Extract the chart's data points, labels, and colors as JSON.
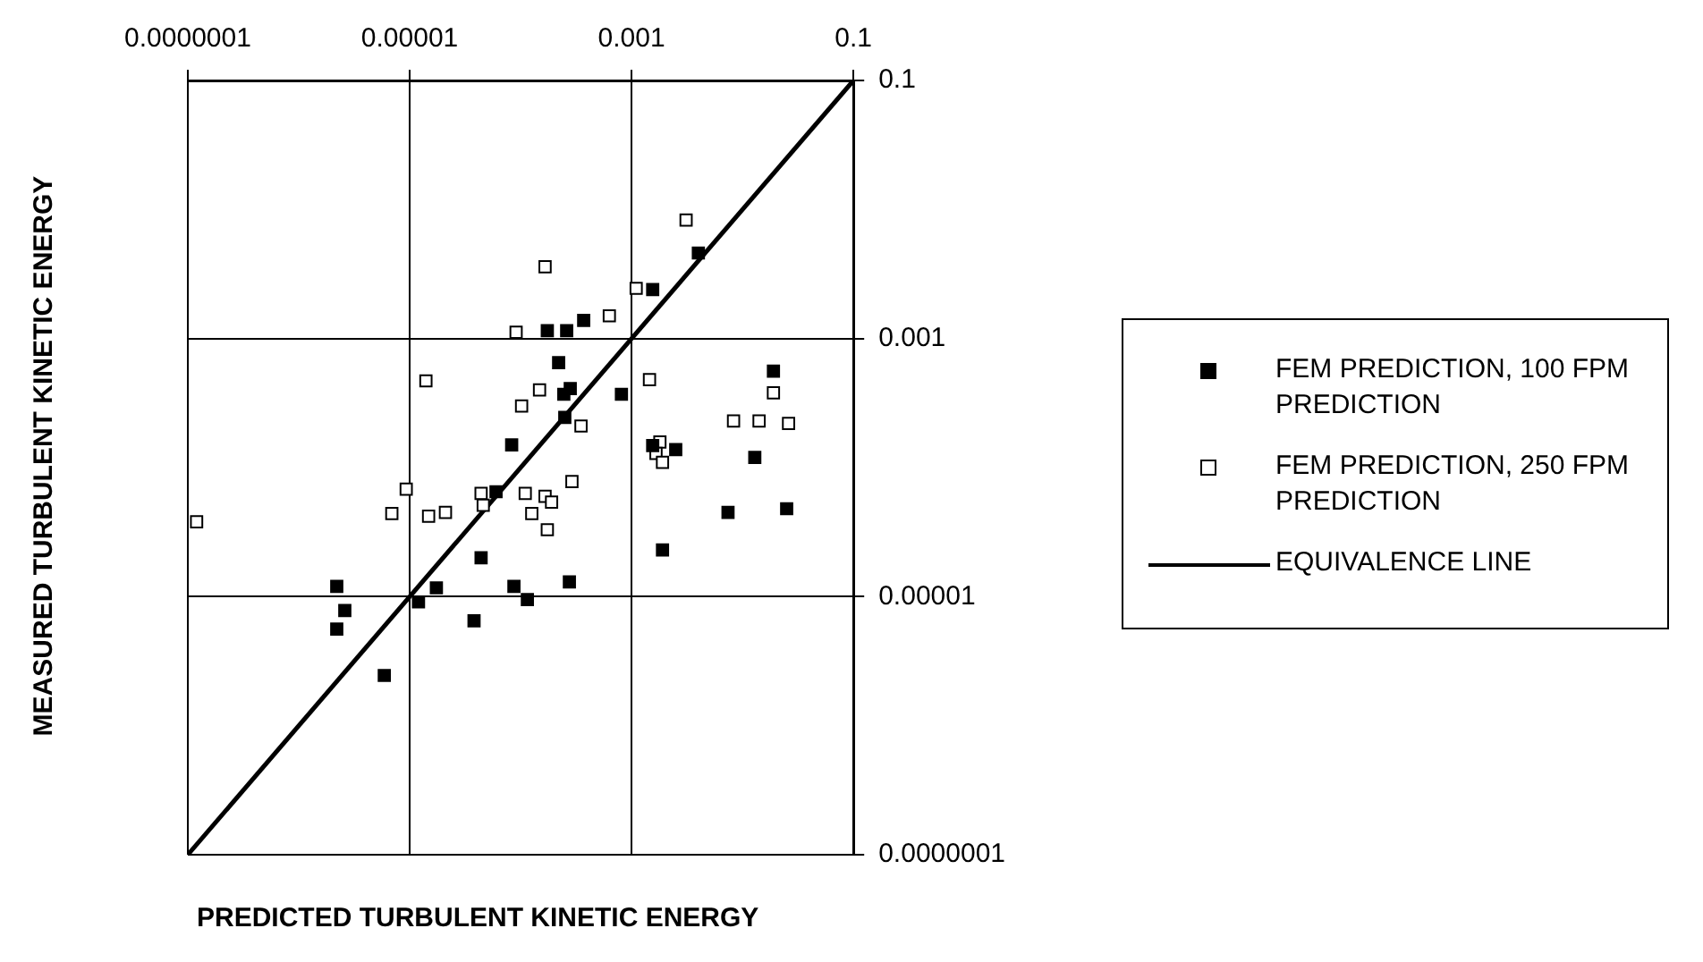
{
  "chart_data": {
    "type": "scatter",
    "xlabel": "PREDICTED TURBULENT KINETIC ENERGY",
    "ylabel": "MEASURED TURBULENT KINETIC ENERGY",
    "log": "xy",
    "grid": true,
    "legend": "right",
    "xlim": [
      1e-07,
      0.1
    ],
    "xticks": [
      {
        "value": 1e-07,
        "label": "0.0000001"
      },
      {
        "value": 1e-05,
        "label": "0.00001"
      },
      {
        "value": 0.001,
        "label": "0.001"
      },
      {
        "value": 0.1,
        "label": "0.1"
      }
    ],
    "ylim": [
      1e-07,
      0.1
    ],
    "yticks": [
      {
        "value": 1e-07,
        "label": "0.0000001"
      },
      {
        "value": 1e-05,
        "label": "0.00001"
      },
      {
        "value": 0.001,
        "label": "0.001"
      },
      {
        "value": 0.1,
        "label": "0.1"
      }
    ],
    "series": [
      {
        "name": "FEM PREDICTION, 100 FPM PREDICTION",
        "marker": "square",
        "color": "#000000",
        "x": [
          0.004,
          0.00155,
          0.00037,
          0.00026,
          0.000174,
          0.00022,
          0.019,
          0.000245,
          0.00028,
          0.00081,
          0.00025,
          8.3e-05,
          0.00155,
          0.0025,
          0.0129,
          6e-05,
          0.0074,
          0.025,
          0.0019,
          4.4e-05,
          0.000275,
          2.2e-06,
          1.74e-05,
          8.7e-05,
          0.000115,
          1.2e-05,
          2.6e-06,
          2.2e-06,
          3.8e-05,
          5.9e-06
        ],
        "values": [
          0.0046,
          0.0024,
          0.00138,
          0.00115,
          0.00115,
          0.00065,
          0.00056,
          0.00037,
          0.00041,
          0.00037,
          0.000245,
          0.00015,
          0.000148,
          0.000138,
          0.00012,
          6.5e-05,
          4.5e-05,
          4.8e-05,
          2.3e-05,
          2e-05,
          1.3e-05,
          1.2e-05,
          1.17e-05,
          1.2e-05,
          9.5e-06,
          9.1e-06,
          7.8e-06,
          5.6e-06,
          6.5e-06,
          2.45e-06
        ]
      },
      {
        "name": "FEM PREDICTION, 250 FPM PREDICTION",
        "marker": "square",
        "color": "#ffffff",
        "x": [
          0.0031,
          0.000166,
          0.0011,
          0.00063,
          9.1e-05,
          1.4e-05,
          0.00145,
          0.019,
          0.000148,
          0.000102,
          0.00035,
          0.0083,
          0.0141,
          0.026,
          0.0018,
          0.00166,
          0.0019,
          0.00029,
          9.3e-06,
          4.4e-05,
          4.6e-05,
          0.00011,
          0.000166,
          0.00019,
          0.000126,
          0.000174,
          6.9e-06,
          1.48e-05,
          2.1e-05,
          1.2e-07
        ],
        "values": [
          0.0083,
          0.0036,
          0.00245,
          0.0015,
          0.00112,
          0.00047,
          0.00048,
          0.00038,
          0.0004,
          0.0003,
          0.00021,
          0.00023,
          0.00023,
          0.00022,
          0.000158,
          0.000129,
          0.00011,
          7.8e-05,
          6.8e-05,
          6.3e-05,
          5.1e-05,
          6.3e-05,
          6e-05,
          5.4e-05,
          4.4e-05,
          3.3e-05,
          4.4e-05,
          4.2e-05,
          4.5e-05,
          3.8e-05
        ]
      },
      {
        "name": "EQUIVALENCE LINE",
        "type": "line",
        "marker": "none",
        "line_style": "solid",
        "color": "#000000",
        "x": [
          1e-07,
          0.1
        ],
        "values": [
          1e-07,
          0.1
        ]
      }
    ]
  }
}
